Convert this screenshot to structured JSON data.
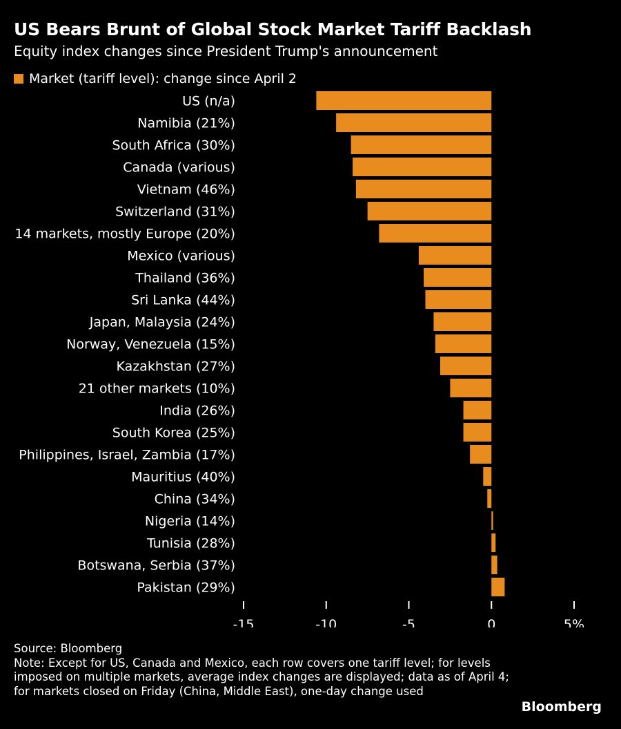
{
  "header": {
    "title": "US Bears Brunt of Global Stock Market Tariff Backlash",
    "subtitle": "Equity index changes since President Trump's announcement"
  },
  "legend": {
    "label": "Market (tariff level): change since April 2",
    "color": "#E98C20"
  },
  "chart_data": {
    "type": "bar",
    "orientation": "horizontal",
    "bar_color": "#E98C20",
    "categories": [
      "US (n/a)",
      "Namibia (21%)",
      "South Africa (30%)",
      "Canada (various)",
      "Vietnam (46%)",
      "Switzerland (31%)",
      "14 markets, mostly Europe (20%)",
      "Mexico (various)",
      "Thailand (36%)",
      "Sri Lanka (44%)",
      "Japan, Malaysia (24%)",
      "Norway, Venezuela (15%)",
      "Kazakhstan (27%)",
      "21 other markets (10%)",
      "India (26%)",
      "South Korea (25%)",
      "Philippines, Israel, Zambia (17%)",
      "Mauritius (40%)",
      "China (34%)",
      "Nigeria (14%)",
      "Tunisia (28%)",
      "Botswana, Serbia (37%)",
      "Pakistan (29%)"
    ],
    "values": [
      -10.6,
      -9.4,
      -8.5,
      -8.4,
      -8.2,
      -7.5,
      -6.8,
      -4.4,
      -4.1,
      -4.0,
      -3.5,
      -3.4,
      -3.1,
      -2.5,
      -1.7,
      -1.7,
      -1.3,
      -0.5,
      -0.25,
      0.1,
      0.25,
      0.35,
      0.8
    ],
    "xlim": [
      -15,
      5
    ],
    "x_ticks": [
      -15,
      -10,
      -5,
      0,
      5
    ],
    "x_tick_labels": [
      "-15",
      "-10",
      "-5",
      "0",
      "5%"
    ],
    "grid": false
  },
  "footer": {
    "source": "Source: Bloomberg",
    "note": "Note: Except for US, Canada and Mexico, each row covers one tariff level; for levels imposed on multiple markets, average index changes are displayed; data as of April 4; for markets closed on Friday (China, Middle East), one-day change used",
    "brand": "Bloomberg"
  }
}
